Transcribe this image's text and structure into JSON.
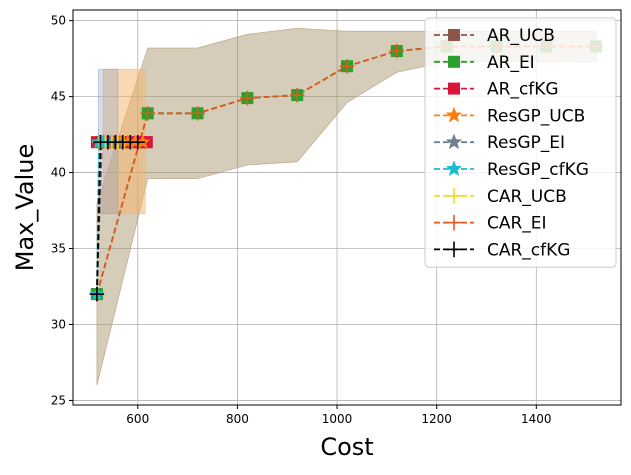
{
  "chart_data": {
    "type": "line",
    "title": "",
    "xlabel": "Cost",
    "ylabel": "Max_Value",
    "xlim": [
      470,
      1570
    ],
    "ylim": [
      24.7,
      50.7
    ],
    "xticks": [
      600,
      800,
      1000,
      1200,
      1400
    ],
    "yticks": [
      25,
      30,
      35,
      40,
      45,
      50
    ],
    "grid": true,
    "legend_position": "upper right",
    "bands": [
      {
        "name": "AR_EI",
        "color": "#a58e66",
        "opacity": 0.45,
        "points": [
          {
            "x": 518,
            "lo": 26.0,
            "hi": 38.0
          },
          {
            "x": 620,
            "lo": 39.6,
            "hi": 48.2
          },
          {
            "x": 720,
            "lo": 39.6,
            "hi": 48.2
          },
          {
            "x": 820,
            "lo": 40.5,
            "hi": 49.1
          },
          {
            "x": 920,
            "lo": 40.7,
            "hi": 49.5
          },
          {
            "x": 1020,
            "lo": 44.6,
            "hi": 49.3
          },
          {
            "x": 1120,
            "lo": 46.6,
            "hi": 49.3
          },
          {
            "x": 1220,
            "lo": 47.3,
            "hi": 49.3
          },
          {
            "x": 1320,
            "lo": 47.3,
            "hi": 49.3
          },
          {
            "x": 1420,
            "lo": 47.3,
            "hi": 49.3
          },
          {
            "x": 1520,
            "lo": 47.3,
            "hi": 49.3
          }
        ]
      },
      {
        "name": "ResGP_UCB",
        "color": "#f5b466",
        "opacity": 0.5,
        "points": [
          {
            "x": 530,
            "lo": 37.3,
            "hi": 46.8
          },
          {
            "x": 615,
            "lo": 37.3,
            "hi": 46.8
          }
        ]
      },
      {
        "name": "ResGP_EI",
        "color": "#8da0cb",
        "opacity": 0.35,
        "points": [
          {
            "x": 521,
            "lo": 37.3,
            "hi": 46.8
          },
          {
            "x": 560,
            "lo": 37.3,
            "hi": 46.8
          }
        ]
      }
    ],
    "series": [
      {
        "name": "AR_UCB",
        "color": "#8c564b",
        "marker": "square",
        "x": [
          518,
          528,
          545,
          560,
          575,
          590,
          605,
          618
        ],
        "y": [
          32.0,
          42.0,
          42.0,
          42.0,
          42.0,
          42.0,
          42.0,
          42.0
        ]
      },
      {
        "name": "AR_EI",
        "color": "#2ca02c",
        "marker": "square",
        "x": [
          518,
          620,
          720,
          820,
          920,
          1020,
          1120,
          1220,
          1320,
          1420,
          1520
        ],
        "y": [
          32.0,
          43.9,
          43.9,
          44.9,
          45.1,
          47.0,
          48.0,
          48.3,
          48.3,
          48.3,
          48.3
        ]
      },
      {
        "name": "AR_cfKG",
        "color": "#dc143c",
        "marker": "square",
        "x": [
          518,
          530,
          545,
          560,
          575,
          590,
          605,
          618
        ],
        "y": [
          42.0,
          42.0,
          42.0,
          42.0,
          42.0,
          42.0,
          42.0,
          42.0
        ]
      },
      {
        "name": "ResGP_UCB",
        "color": "#ff7f0e",
        "marker": "star",
        "x": [
          522,
          535,
          550,
          565,
          580,
          595,
          610
        ],
        "y": [
          42.0,
          42.0,
          42.0,
          42.0,
          42.0,
          42.0,
          42.0
        ]
      },
      {
        "name": "ResGP_EI",
        "color": "#708090",
        "marker": "star",
        "x": [
          521,
          532,
          545,
          558
        ],
        "y": [
          42.0,
          42.0,
          42.0,
          42.0
        ]
      },
      {
        "name": "ResGP_cfKG",
        "color": "#17becf",
        "marker": "star",
        "x": [
          518,
          522,
          527,
          531
        ],
        "y": [
          32.0,
          42.0,
          42.0,
          42.0
        ]
      },
      {
        "name": "CAR_UCB",
        "color": "#f5dd1e",
        "marker": "plus",
        "x": [
          523,
          535,
          548,
          560,
          572,
          585
        ],
        "y": [
          42.0,
          42.0,
          42.0,
          42.0,
          42.0,
          42.0
        ]
      },
      {
        "name": "CAR_EI",
        "color": "#e4571e",
        "marker": "plus",
        "x": [
          518,
          620,
          720,
          820,
          920,
          1020,
          1120,
          1220,
          1320,
          1420,
          1520
        ],
        "y": [
          32.0,
          43.9,
          43.9,
          44.9,
          45.1,
          47.0,
          48.0,
          48.3,
          48.3,
          48.3,
          48.3
        ]
      },
      {
        "name": "CAR_cfKG",
        "color": "#000000",
        "marker": "plus",
        "x": [
          518,
          525,
          540,
          555,
          570,
          585,
          600
        ],
        "y": [
          32.0,
          42.0,
          42.0,
          42.0,
          42.0,
          42.0,
          42.0
        ]
      }
    ]
  }
}
